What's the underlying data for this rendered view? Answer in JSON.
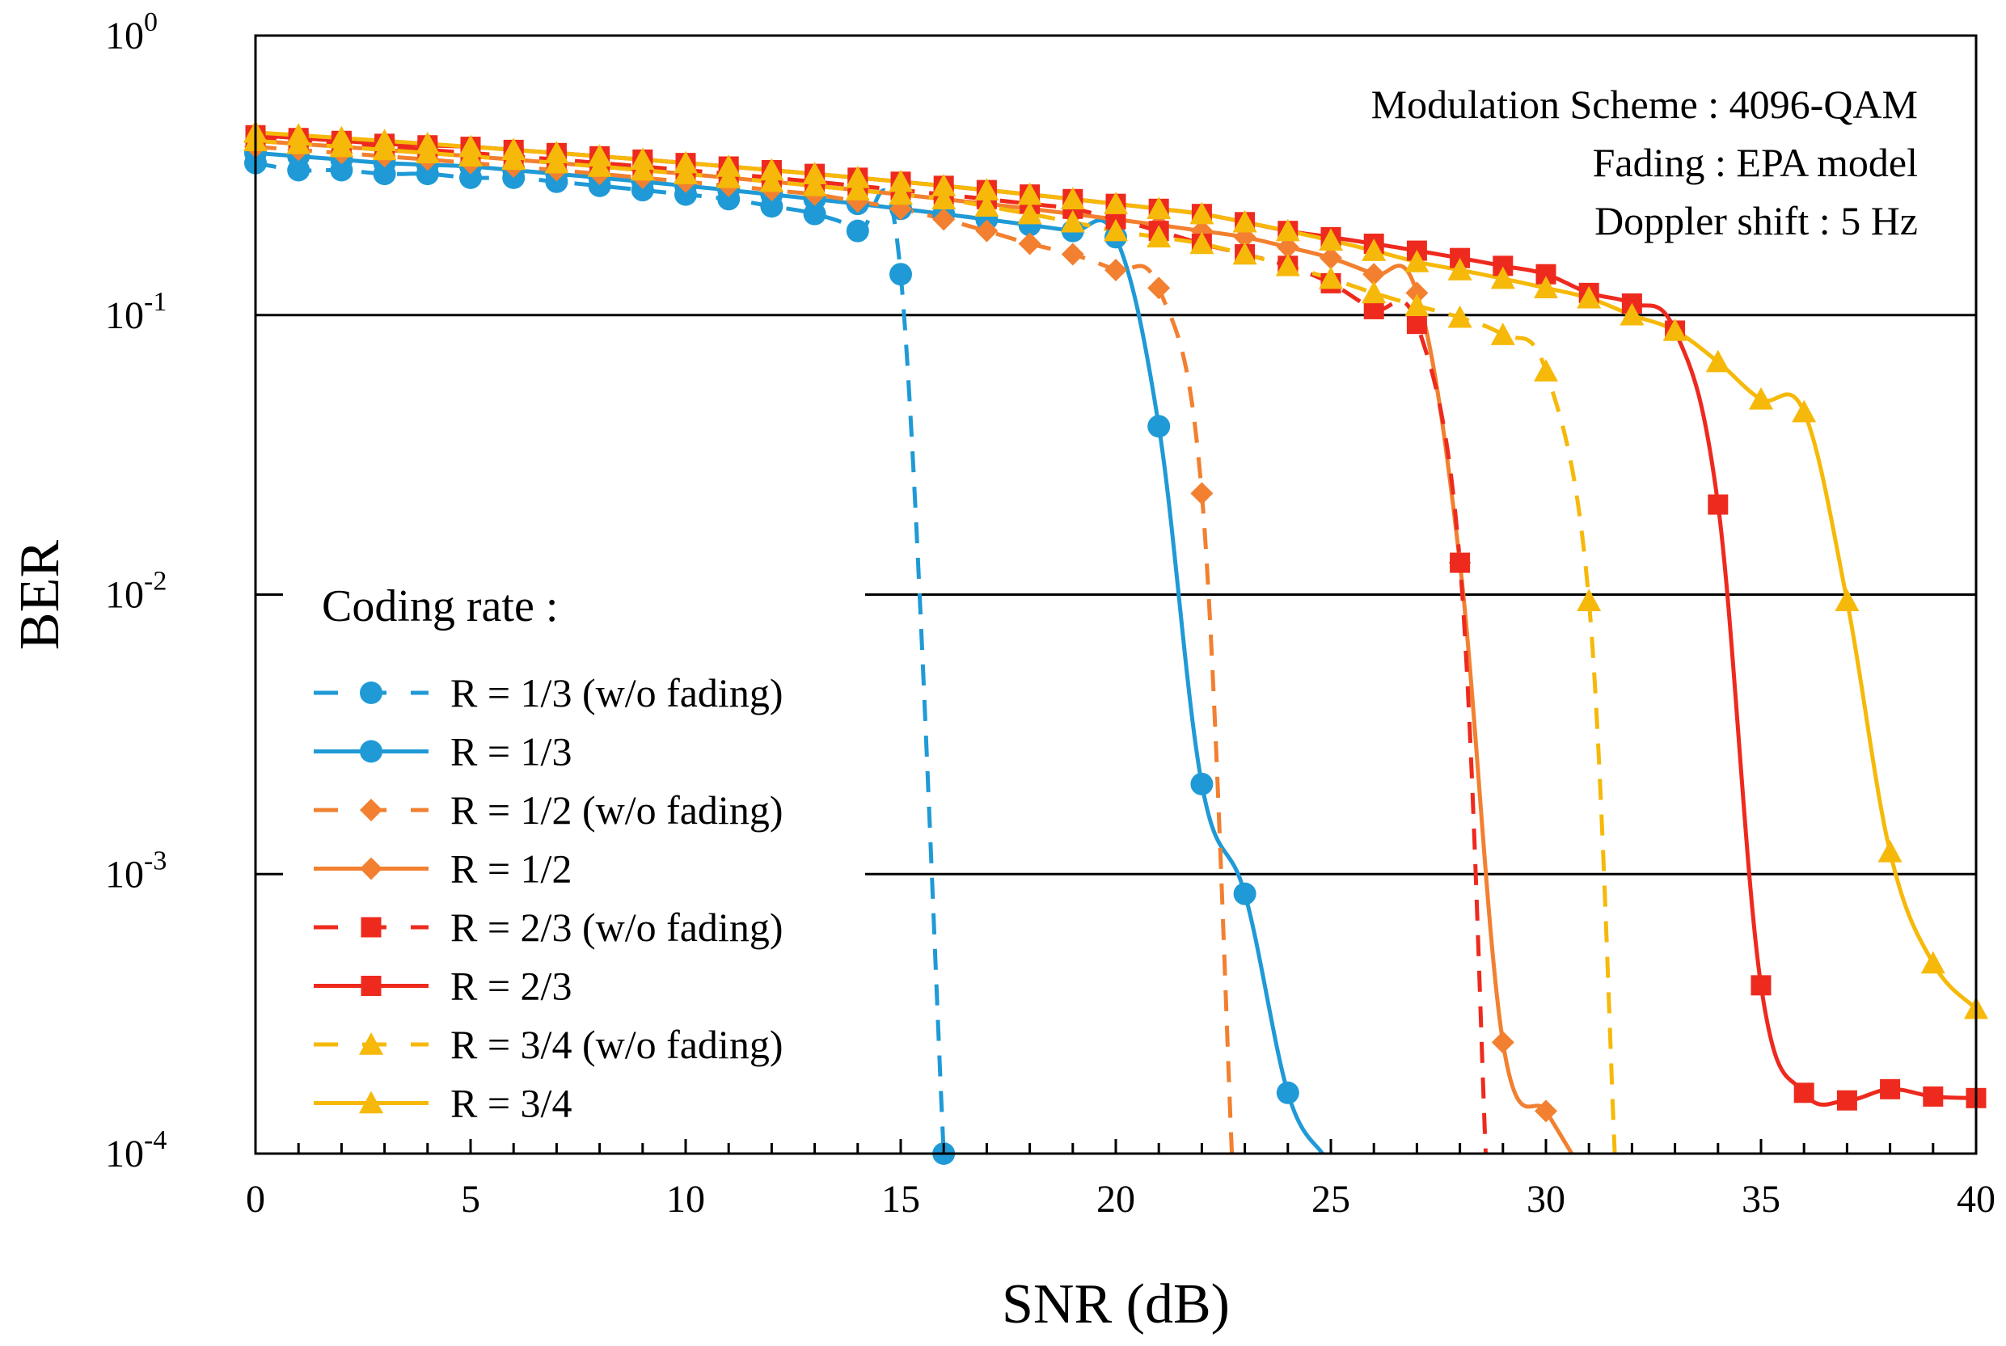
{
  "chart_data": {
    "type": "line",
    "title": "",
    "xlabel": "SNR (dB)",
    "ylabel": "BER",
    "xlim": [
      0,
      40
    ],
    "ylim": [
      0.0001,
      1
    ],
    "yscale": "log",
    "x_ticks": [
      0,
      5,
      10,
      15,
      20,
      25,
      30,
      35,
      40
    ],
    "x_tick_labels": [
      "0",
      "5",
      "10",
      "15",
      "20",
      "25",
      "30",
      "35",
      "40"
    ],
    "y_ticks": [
      {
        "value": 1,
        "base": "10",
        "exp": "0"
      },
      {
        "value": 0.1,
        "base": "10",
        "exp": "-1"
      },
      {
        "value": 0.01,
        "base": "10",
        "exp": "-2"
      },
      {
        "value": 0.001,
        "base": "10",
        "exp": "-3"
      },
      {
        "value": 0.0001,
        "base": "10",
        "exp": "-4"
      }
    ],
    "grid": "horizontal",
    "annotations": [
      "Modulation Scheme : 4096-QAM",
      "Fading : EPA model",
      "Doppler shift : 5 Hz"
    ],
    "legend_title": "Coding rate :",
    "legend_position": "bottom-left",
    "series": [
      {
        "name": "R = 1/3 (w/o fading)",
        "color": "#1f9ad6",
        "dash": true,
        "marker": "circle",
        "x": [
          0,
          1,
          2,
          3,
          4,
          5,
          6,
          7,
          8,
          9,
          10,
          11,
          12,
          13,
          14,
          15,
          16
        ],
        "y": [
          0.35,
          0.33,
          0.33,
          0.32,
          0.32,
          0.31,
          0.31,
          0.3,
          0.29,
          0.28,
          0.27,
          0.26,
          0.245,
          0.23,
          0.2,
          0.14,
          0.0001
        ]
      },
      {
        "name": "R = 1/3",
        "color": "#1f9ad6",
        "dash": false,
        "marker": "circle",
        "x": [
          0,
          1,
          2,
          3,
          4,
          5,
          6,
          7,
          8,
          9,
          10,
          11,
          12,
          13,
          14,
          15,
          16,
          17,
          18,
          19,
          20,
          21,
          22,
          23,
          24,
          24.8
        ],
        "y": [
          0.38,
          0.37,
          0.36,
          0.35,
          0.345,
          0.34,
          0.33,
          0.32,
          0.31,
          0.3,
          0.29,
          0.28,
          0.27,
          0.26,
          0.25,
          0.24,
          0.23,
          0.22,
          0.21,
          0.2,
          0.19,
          0.04,
          0.0021,
          0.00085,
          0.000165,
          0.0001
        ]
      },
      {
        "name": "R = 1/2 (w/o fading)",
        "color": "#f28030",
        "dash": true,
        "marker": "diamond",
        "x": [
          0,
          1,
          2,
          3,
          4,
          5,
          6,
          7,
          8,
          9,
          10,
          11,
          12,
          13,
          14,
          15,
          16,
          17,
          18,
          19,
          20,
          21,
          22,
          22.7
        ],
        "y": [
          0.4,
          0.39,
          0.38,
          0.37,
          0.36,
          0.35,
          0.34,
          0.33,
          0.32,
          0.31,
          0.3,
          0.29,
          0.28,
          0.27,
          0.255,
          0.24,
          0.22,
          0.2,
          0.18,
          0.165,
          0.145,
          0.125,
          0.023,
          0.0001
        ]
      },
      {
        "name": "R = 1/2",
        "color": "#f28030",
        "dash": false,
        "marker": "diamond",
        "x": [
          0,
          1,
          2,
          3,
          4,
          5,
          6,
          7,
          8,
          9,
          10,
          11,
          12,
          13,
          14,
          15,
          16,
          17,
          18,
          19,
          20,
          21,
          22,
          23,
          24,
          25,
          26,
          27,
          28,
          29,
          30,
          30.6
        ],
        "y": [
          0.42,
          0.41,
          0.4,
          0.39,
          0.38,
          0.37,
          0.36,
          0.35,
          0.34,
          0.33,
          0.32,
          0.31,
          0.3,
          0.29,
          0.28,
          0.27,
          0.26,
          0.25,
          0.24,
          0.23,
          0.22,
          0.21,
          0.2,
          0.19,
          0.175,
          0.16,
          0.14,
          0.12,
          0.013,
          0.00025,
          0.000142,
          0.0001
        ]
      },
      {
        "name": "R = 2/3 (w/o fading)",
        "color": "#ee2a1e",
        "dash": true,
        "marker": "square",
        "x": [
          0,
          1,
          2,
          3,
          4,
          5,
          6,
          7,
          8,
          9,
          10,
          11,
          12,
          13,
          14,
          15,
          16,
          17,
          18,
          19,
          20,
          21,
          22,
          23,
          24,
          25,
          26,
          27,
          28,
          28.6
        ],
        "y": [
          0.43,
          0.42,
          0.41,
          0.4,
          0.39,
          0.38,
          0.37,
          0.36,
          0.35,
          0.34,
          0.33,
          0.32,
          0.31,
          0.3,
          0.29,
          0.28,
          0.27,
          0.26,
          0.25,
          0.24,
          0.22,
          0.2,
          0.18,
          0.165,
          0.15,
          0.13,
          0.105,
          0.093,
          0.013,
          0.0001
        ]
      },
      {
        "name": "R = 2/3",
        "color": "#ee2a1e",
        "dash": false,
        "marker": "square",
        "x": [
          0,
          1,
          2,
          3,
          4,
          5,
          6,
          7,
          8,
          9,
          10,
          11,
          12,
          13,
          14,
          15,
          16,
          17,
          18,
          19,
          20,
          21,
          22,
          23,
          24,
          25,
          26,
          27,
          28,
          29,
          30,
          31,
          32,
          33,
          34,
          35,
          36,
          37,
          38,
          39,
          40
        ],
        "y": [
          0.44,
          0.43,
          0.42,
          0.41,
          0.405,
          0.4,
          0.39,
          0.38,
          0.37,
          0.36,
          0.35,
          0.34,
          0.33,
          0.32,
          0.31,
          0.3,
          0.29,
          0.28,
          0.27,
          0.26,
          0.25,
          0.24,
          0.23,
          0.215,
          0.2,
          0.19,
          0.18,
          0.17,
          0.16,
          0.15,
          0.14,
          0.12,
          0.11,
          0.088,
          0.021,
          0.0004,
          0.000165,
          0.000155,
          0.00017,
          0.00016,
          0.000158
        ]
      },
      {
        "name": "R = 3/4 (w/o fading)",
        "color": "#f6b90a",
        "dash": true,
        "marker": "triangle",
        "x": [
          0,
          1,
          2,
          3,
          4,
          5,
          6,
          7,
          8,
          9,
          10,
          11,
          12,
          13,
          14,
          15,
          16,
          17,
          18,
          19,
          20,
          21,
          22,
          23,
          24,
          25,
          26,
          27,
          28,
          29,
          30,
          31,
          31.6
        ],
        "y": [
          0.42,
          0.41,
          0.4,
          0.39,
          0.38,
          0.37,
          0.36,
          0.35,
          0.34,
          0.33,
          0.32,
          0.31,
          0.3,
          0.29,
          0.28,
          0.27,
          0.26,
          0.245,
          0.23,
          0.215,
          0.2,
          0.19,
          0.18,
          0.165,
          0.15,
          0.135,
          0.12,
          0.108,
          0.098,
          0.085,
          0.063,
          0.0095,
          0.0001
        ]
      },
      {
        "name": "R = 3/4",
        "color": "#f6b90a",
        "dash": false,
        "marker": "triangle",
        "x": [
          0,
          1,
          2,
          3,
          4,
          5,
          6,
          7,
          8,
          9,
          10,
          11,
          12,
          13,
          14,
          15,
          16,
          17,
          18,
          19,
          20,
          21,
          22,
          23,
          24,
          25,
          26,
          27,
          28,
          29,
          30,
          31,
          32,
          33,
          34,
          35,
          36,
          37,
          38,
          39,
          40
        ],
        "y": [
          0.45,
          0.44,
          0.43,
          0.42,
          0.41,
          0.4,
          0.39,
          0.38,
          0.37,
          0.36,
          0.35,
          0.34,
          0.33,
          0.32,
          0.31,
          0.3,
          0.29,
          0.28,
          0.27,
          0.26,
          0.25,
          0.24,
          0.23,
          0.215,
          0.2,
          0.185,
          0.17,
          0.155,
          0.145,
          0.135,
          0.125,
          0.115,
          0.1,
          0.088,
          0.068,
          0.05,
          0.045,
          0.0095,
          0.0012,
          0.00048,
          0.00033
        ]
      }
    ]
  }
}
